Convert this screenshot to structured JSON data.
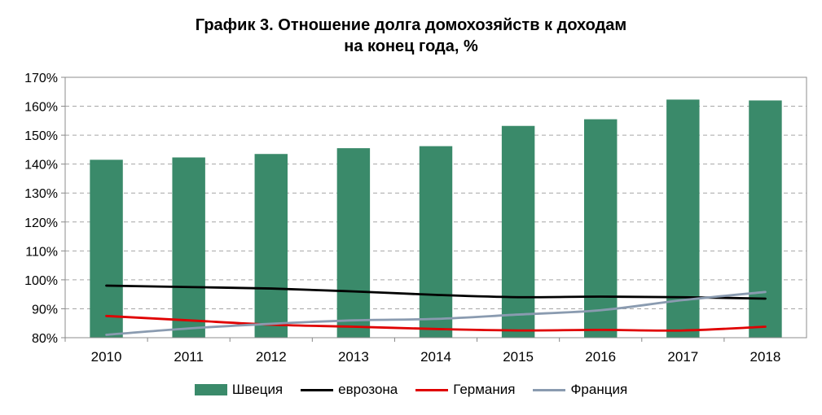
{
  "chart_data": {
    "type": "bar",
    "title_line1": "График 3. Отношение долга домохозяйств к доходам",
    "title_line2": "на конец года, %",
    "categories": [
      "2010",
      "2011",
      "2012",
      "2013",
      "2014",
      "2015",
      "2016",
      "2017",
      "2018"
    ],
    "y_ticks": [
      "80%",
      "90%",
      "100%",
      "110%",
      "120%",
      "130%",
      "140%",
      "150%",
      "160%",
      "170%"
    ],
    "ylim": [
      80,
      170
    ],
    "grid": true,
    "legend_position": "bottom",
    "series": [
      {
        "name": "Швеция",
        "type": "bar",
        "color": "#3a8a6a",
        "values": [
          141.5,
          142.3,
          143.5,
          145.5,
          146.2,
          153.2,
          155.5,
          162.3,
          162.0
        ]
      },
      {
        "name": "еврозона",
        "type": "line",
        "color": "#000000",
        "values": [
          98.0,
          97.5,
          97.0,
          96.0,
          94.8,
          94.0,
          94.2,
          94.0,
          93.5
        ]
      },
      {
        "name": "Германия",
        "type": "line",
        "color": "#e00000",
        "values": [
          87.5,
          86.0,
          84.5,
          83.8,
          83.0,
          82.5,
          82.7,
          82.5,
          83.8
        ]
      },
      {
        "name": "Франция",
        "type": "line",
        "color": "#8a9bb0",
        "values": [
          81.0,
          83.2,
          84.8,
          86.0,
          86.5,
          88.0,
          89.5,
          93.0,
          95.8
        ]
      }
    ]
  }
}
